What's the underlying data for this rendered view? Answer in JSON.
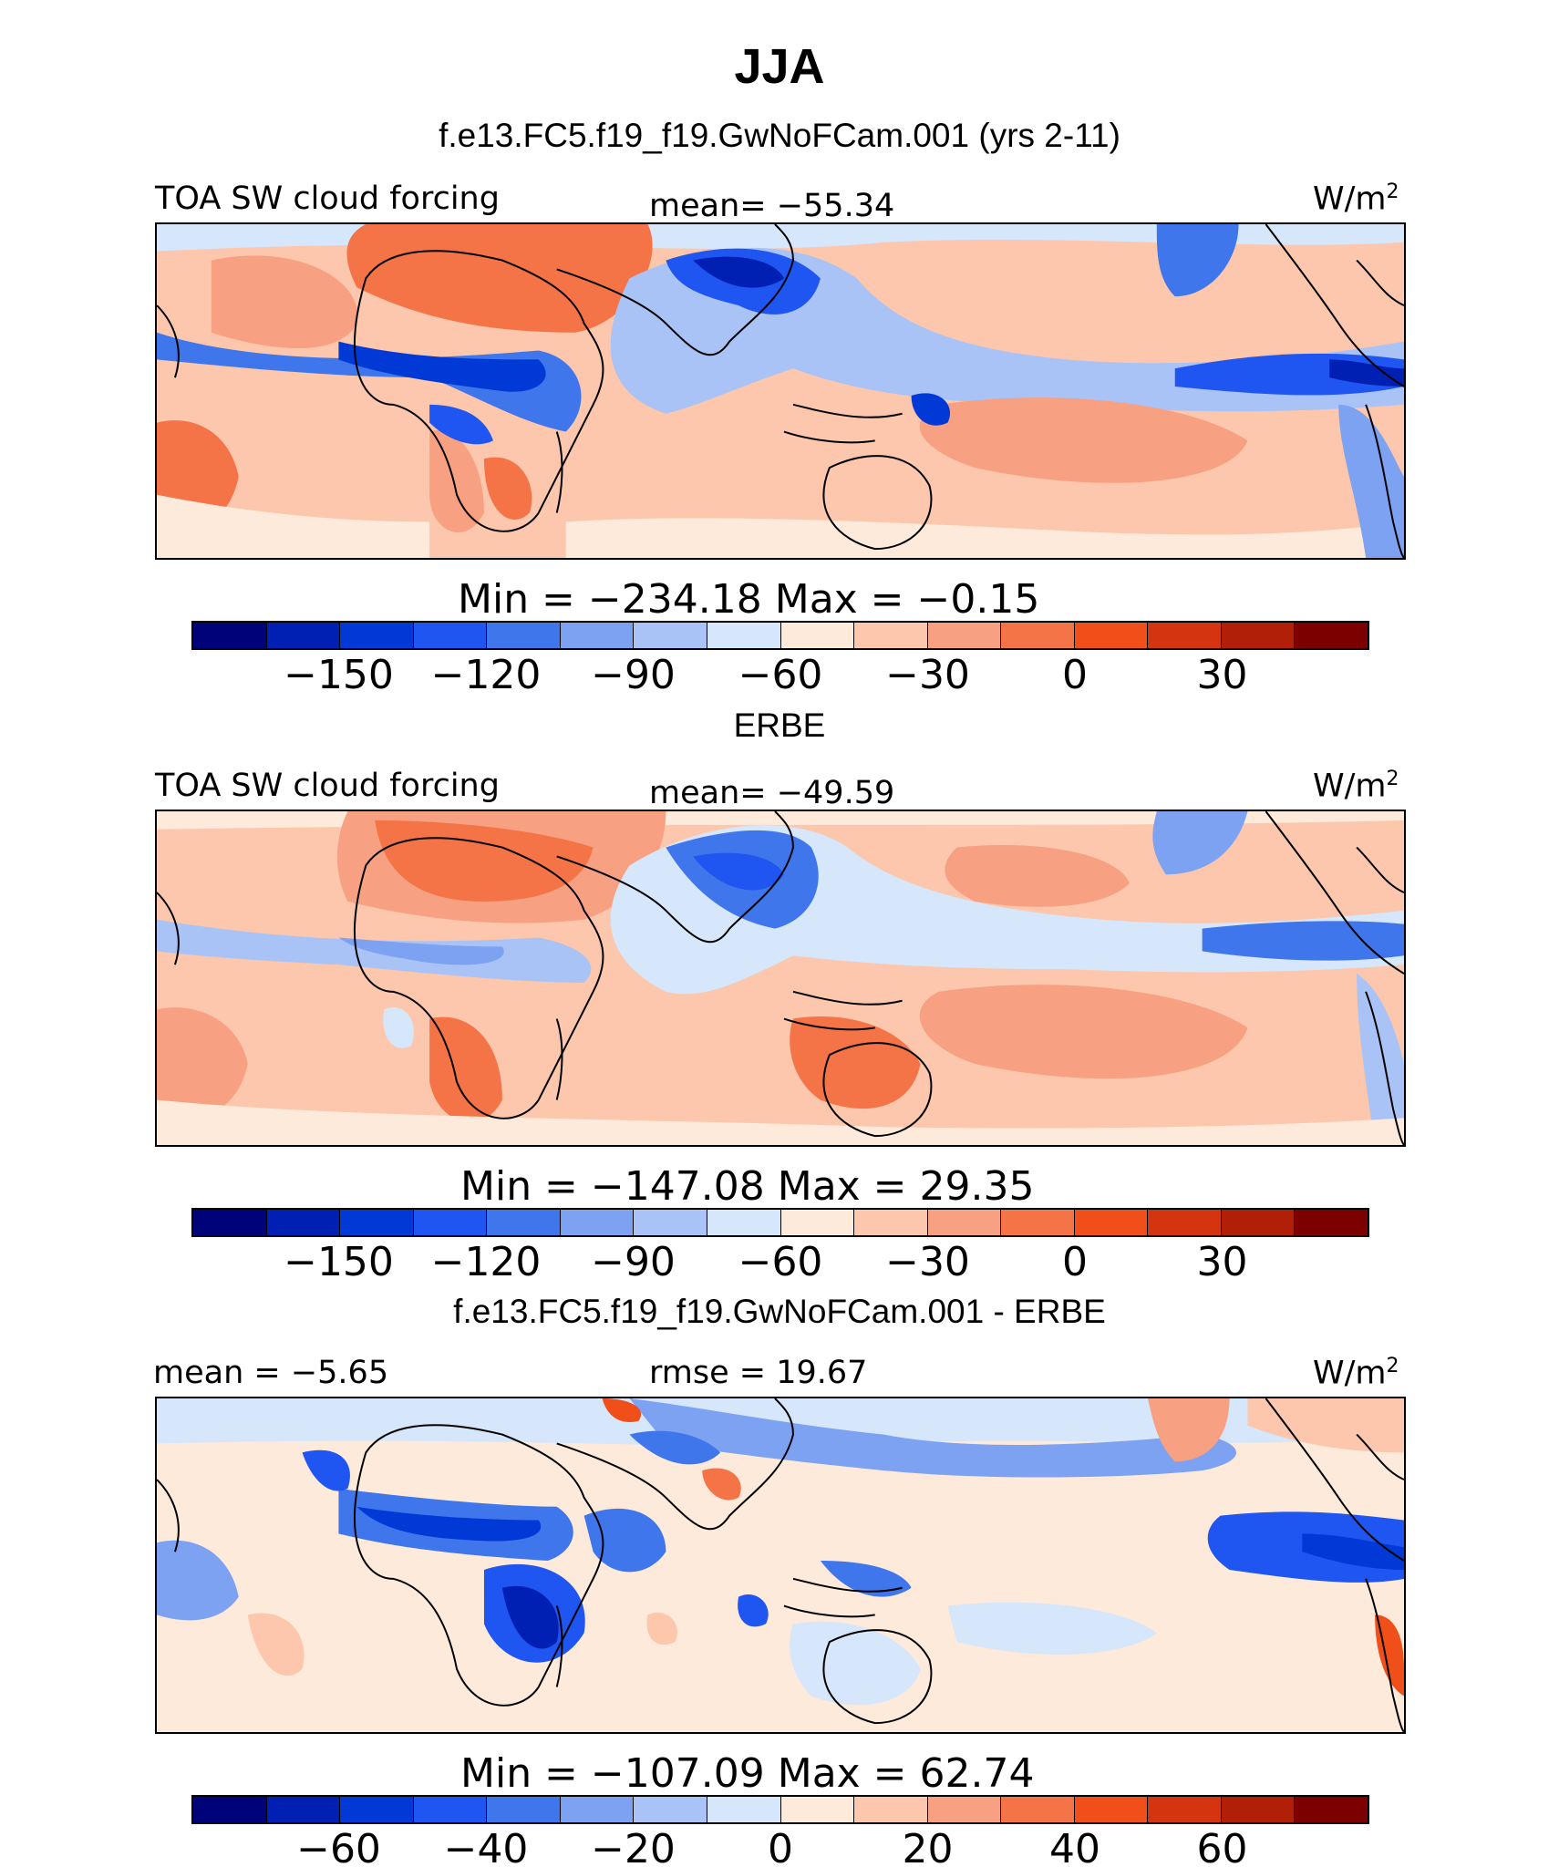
{
  "title": "JJA",
  "palette": [
    "#00027a",
    "#0020b4",
    "#0039d6",
    "#1f55f0",
    "#3f76ec",
    "#7ea2f2",
    "#a9c3f6",
    "#d6e6fb",
    "#feeadb",
    "#fcc7ac",
    "#f8a082",
    "#f47448",
    "#f14f1a",
    "#d53410",
    "#b11f08",
    "#7d0000"
  ],
  "colors": {
    "coast": "#000000"
  },
  "panels": [
    {
      "subtitle": "f.e13.FC5.f19_f19.GwNoFCam.001 (yrs 2-11)",
      "left_label": "TOA SW cloud forcing",
      "center_label": "mean= −55.34",
      "units": "W/m",
      "units_sup": "2",
      "stats": "Min  =  −234.18  Max  =    −0.15",
      "ticks": [
        "−150",
        "−120",
        "−90",
        "−60",
        "−30",
        "0",
        "30"
      ],
      "map_icon": "global-tropical-map-model"
    },
    {
      "subtitle": "ERBE",
      "left_label": "TOA SW cloud forcing",
      "center_label": "mean= −49.59",
      "units": "W/m",
      "units_sup": "2",
      "stats": "Min  =  −147.08  Max  =    29.35",
      "ticks": [
        "−150",
        "−120",
        "−90",
        "−60",
        "−30",
        "0",
        "30"
      ],
      "map_icon": "global-tropical-map-observations"
    },
    {
      "subtitle": "f.e13.FC5.f19_f19.GwNoFCam.001 - ERBE",
      "left_label": "mean  =   −5.65",
      "center_label": "rmse  =   19.67",
      "units": "W/m",
      "units_sup": "2",
      "stats": "Min  =  −107.09  Max  =    62.74",
      "ticks": [
        "−60",
        "−40",
        "−20",
        "0",
        "20",
        "40",
        "60"
      ],
      "map_icon": "global-tropical-map-difference"
    }
  ]
}
